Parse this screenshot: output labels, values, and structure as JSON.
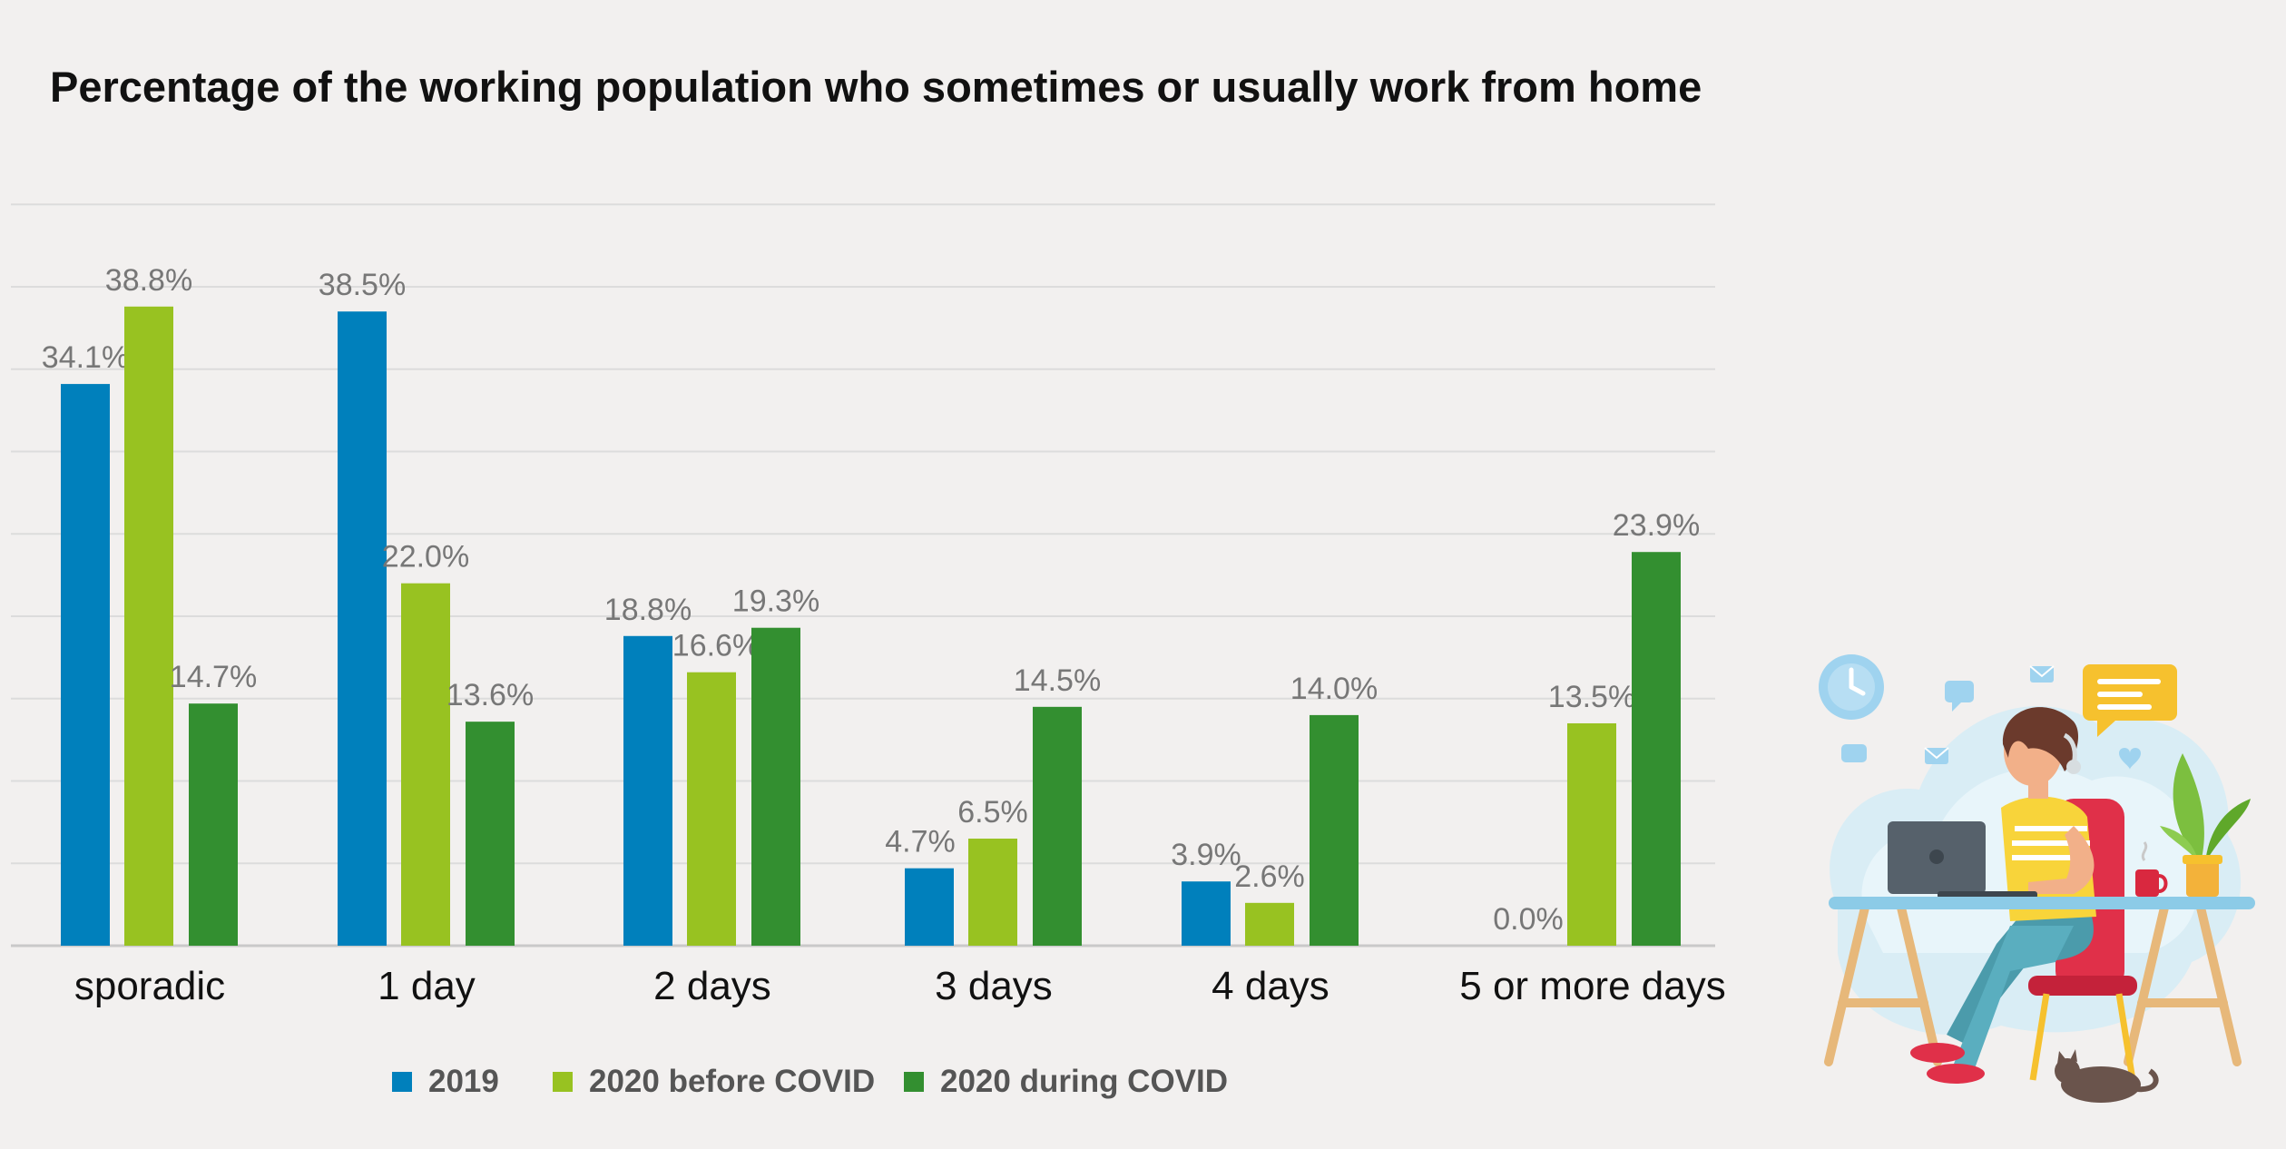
{
  "chart_data": {
    "type": "bar",
    "title": "Percentage of the working population who sometimes or usually work from home",
    "categories": [
      "sporadic",
      "1 day",
      "2 days",
      "3 days",
      "4 days",
      "5 or more days"
    ],
    "series": [
      {
        "name": "2019",
        "color": "#0080bc",
        "values": [
          34.1,
          38.5,
          18.8,
          4.7,
          3.9,
          0.0
        ],
        "labels": [
          "34.1%",
          "38.5%",
          "18.8%",
          "4.7%",
          "3.9%",
          "0.0%"
        ]
      },
      {
        "name": "2020 before COVID",
        "color": "#98c221",
        "values": [
          38.8,
          22.0,
          16.6,
          6.5,
          2.6,
          13.5
        ],
        "labels": [
          "38.8%",
          "22.0%",
          "16.6%",
          "6.5%",
          "2.6%",
          "13.5%"
        ]
      },
      {
        "name": "2020 during COVID",
        "color": "#338f30",
        "values": [
          14.7,
          13.6,
          19.3,
          14.5,
          14.0,
          23.9
        ],
        "labels": [
          "14.7%",
          "13.6%",
          "19.3%",
          "14.5%",
          "14.0%",
          "23.9%"
        ]
      }
    ],
    "ylim": [
      0,
      45
    ],
    "grid": true,
    "legend_position": "bottom",
    "xlabel": "",
    "ylabel": ""
  },
  "illustration": {
    "subject": "person working from home at a desk with a laptop"
  }
}
